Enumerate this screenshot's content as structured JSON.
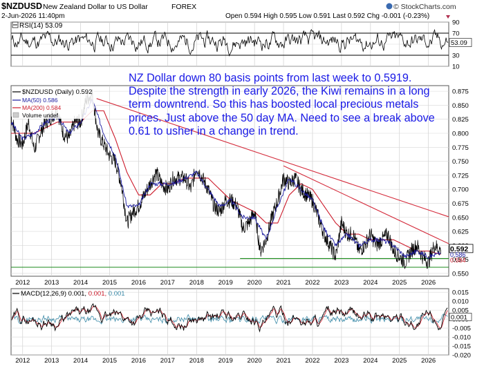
{
  "header": {
    "symbol": "$NZDUSD",
    "name": "New Zealand Dollar to US Dollar",
    "exchange": "FOREX",
    "brand": "© StockCharts.com",
    "date": "2-Jun-2026 11:40pm",
    "quote": "Open 0.594  High 0.595  Low 0.591  Last 0.592  Chg -0.001 (-0.23%)"
  },
  "annotation": "NZ Dollar down 80 basis points from last week to 0.5919. Despite the strength in early 2026, the Kiwi remains in a long term downtrend. So this has boosted local precious metals prices. Just above the 50 day MA. Need to see a break above 0.61 to usher in a change in trend.",
  "colors": {
    "price": "#000000",
    "ma50": "#1a1aa0",
    "ma200": "#cc1a2a",
    "trendline": "#d42a3a",
    "support": "#1a8a1a",
    "annotation": "#1a1ae6",
    "macd": "#000000",
    "signal": "#cc1a2a",
    "histogram": "#3a8aa8"
  },
  "chart_data": [
    {
      "type": "line",
      "panel": "RSI",
      "legend": "RSI(14) 53.09",
      "last_value": 53.09,
      "last_label": "53.09",
      "ylim": [
        10,
        90
      ],
      "reference_lines": [
        30,
        70
      ],
      "yticks": [
        "90",
        "70",
        "50",
        "30",
        "10"
      ],
      "xticks": [
        "2012",
        "2013",
        "2014",
        "2015",
        "2016",
        "2017",
        "2018",
        "2019",
        "2020",
        "2021",
        "2022",
        "2023",
        "2024",
        "2025",
        "2026"
      ]
    },
    {
      "type": "line",
      "panel": "Price",
      "title": "New Zealand Dollar to US Dollar",
      "legend": [
        "$NZDUSD (Daily) 0.592",
        "MA(50) 0.586",
        "MA(200) 0.584",
        "Volume undef"
      ],
      "ylim": [
        0.545,
        0.885
      ],
      "yticks": [
        "0.875",
        "0.850",
        "0.825",
        "0.800",
        "0.775",
        "0.750",
        "0.725",
        "0.700",
        "0.675",
        "0.650",
        "0.625",
        "0.600",
        "0.575",
        "0.550"
      ],
      "xticks": [
        "2012",
        "2013",
        "2014",
        "2015",
        "2016",
        "2017",
        "2018",
        "2019",
        "2020",
        "2021",
        "2022",
        "2023",
        "2024",
        "2025",
        "2026"
      ],
      "last_label": "0.592",
      "ma_labels": [
        "0.586",
        "0.584"
      ],
      "series": [
        {
          "name": "$NZDUSD",
          "x": [
            2011.6,
            2011.8,
            2012.0,
            2012.2,
            2012.4,
            2012.6,
            2012.8,
            2013.0,
            2013.2,
            2013.4,
            2013.6,
            2013.8,
            2014.0,
            2014.2,
            2014.4,
            2014.6,
            2014.8,
            2015.0,
            2015.2,
            2015.4,
            2015.6,
            2015.8,
            2016.0,
            2016.2,
            2016.4,
            2016.6,
            2016.8,
            2017.0,
            2017.2,
            2017.4,
            2017.6,
            2017.8,
            2018.0,
            2018.2,
            2018.4,
            2018.6,
            2018.8,
            2019.0,
            2019.2,
            2019.4,
            2019.6,
            2019.8,
            2020.0,
            2020.2,
            2020.4,
            2020.6,
            2020.8,
            2021.0,
            2021.2,
            2021.4,
            2021.6,
            2021.8,
            2022.0,
            2022.2,
            2022.4,
            2022.6,
            2022.8,
            2023.0,
            2023.2,
            2023.4,
            2023.6,
            2023.8,
            2024.0,
            2024.2,
            2024.4,
            2024.6,
            2024.8,
            2025.0,
            2025.2,
            2025.4,
            2025.6,
            2025.8,
            2026.0,
            2026.2,
            2026.42
          ],
          "values": [
            0.83,
            0.79,
            0.78,
            0.82,
            0.77,
            0.8,
            0.82,
            0.83,
            0.84,
            0.8,
            0.79,
            0.82,
            0.82,
            0.86,
            0.87,
            0.8,
            0.78,
            0.76,
            0.75,
            0.71,
            0.64,
            0.66,
            0.67,
            0.69,
            0.71,
            0.73,
            0.71,
            0.7,
            0.72,
            0.72,
            0.72,
            0.7,
            0.74,
            0.72,
            0.7,
            0.67,
            0.66,
            0.68,
            0.68,
            0.67,
            0.63,
            0.64,
            0.66,
            0.59,
            0.61,
            0.65,
            0.68,
            0.72,
            0.71,
            0.72,
            0.7,
            0.69,
            0.68,
            0.65,
            0.62,
            0.6,
            0.58,
            0.64,
            0.62,
            0.62,
            0.59,
            0.6,
            0.62,
            0.6,
            0.61,
            0.62,
            0.59,
            0.58,
            0.57,
            0.59,
            0.6,
            0.58,
            0.57,
            0.6,
            0.592
          ]
        },
        {
          "name": "MA(50)",
          "x": [
            2011.6,
            2012.0,
            2012.4,
            2012.8,
            2013.2,
            2013.6,
            2014.0,
            2014.4,
            2014.8,
            2015.2,
            2015.6,
            2016.0,
            2016.4,
            2016.8,
            2017.2,
            2017.6,
            2018.0,
            2018.4,
            2018.8,
            2019.2,
            2019.6,
            2020.0,
            2020.4,
            2020.8,
            2021.2,
            2021.6,
            2022.0,
            2022.4,
            2022.8,
            2023.2,
            2023.6,
            2024.0,
            2024.4,
            2024.8,
            2025.2,
            2025.6,
            2026.0,
            2026.42
          ],
          "values": [
            0.82,
            0.79,
            0.8,
            0.82,
            0.83,
            0.8,
            0.82,
            0.86,
            0.8,
            0.76,
            0.67,
            0.67,
            0.71,
            0.71,
            0.71,
            0.72,
            0.73,
            0.7,
            0.67,
            0.68,
            0.65,
            0.65,
            0.61,
            0.67,
            0.72,
            0.7,
            0.68,
            0.63,
            0.6,
            0.62,
            0.6,
            0.61,
            0.61,
            0.6,
            0.58,
            0.59,
            0.58,
            0.586
          ]
        },
        {
          "name": "MA(200)",
          "x": [
            2011.6,
            2012.0,
            2012.4,
            2012.8,
            2013.2,
            2013.6,
            2014.0,
            2014.4,
            2014.8,
            2015.2,
            2015.6,
            2016.0,
            2016.4,
            2016.8,
            2017.2,
            2017.6,
            2018.0,
            2018.4,
            2018.8,
            2019.2,
            2019.6,
            2020.0,
            2020.4,
            2020.8,
            2021.2,
            2021.6,
            2022.0,
            2022.4,
            2022.8,
            2023.2,
            2023.6,
            2024.0,
            2024.4,
            2024.8,
            2025.2,
            2025.6,
            2026.0,
            2026.42
          ],
          "values": [
            0.8,
            0.8,
            0.8,
            0.81,
            0.82,
            0.82,
            0.82,
            0.84,
            0.84,
            0.79,
            0.73,
            0.69,
            0.69,
            0.71,
            0.71,
            0.72,
            0.72,
            0.72,
            0.7,
            0.68,
            0.67,
            0.66,
            0.64,
            0.64,
            0.69,
            0.71,
            0.7,
            0.67,
            0.64,
            0.62,
            0.62,
            0.61,
            0.61,
            0.61,
            0.6,
            0.59,
            0.59,
            0.584
          ]
        }
      ],
      "trendlines": [
        {
          "x": [
            2014.55,
            2026.7
          ],
          "y": [
            0.862,
            0.651
          ]
        },
        {
          "x": [
            2021.0,
            2026.7
          ],
          "y": [
            0.742,
            0.603
          ]
        }
      ],
      "support_lines": [
        {
          "x": [
            2019.5,
            2026.7
          ],
          "y": 0.5765
        },
        {
          "x": [
            2011.6,
            2026.7
          ],
          "y": 0.561
        }
      ]
    },
    {
      "type": "line",
      "panel": "MACD",
      "legend": "MACD(12,26,9) 0.001, 0.001, 0.001",
      "legend_values": [
        "0.001,",
        "0.001,",
        "0.001"
      ],
      "ylim": [
        -0.02,
        0.017
      ],
      "yticks": [
        "0.015",
        "0.010",
        "0.005",
        "0.000",
        "-0.005",
        "-0.010",
        "-0.015",
        "-0.020"
      ],
      "last_label": "0.001",
      "xticks": [
        "2012",
        "2013",
        "2014",
        "2015",
        "2016",
        "2017",
        "2018",
        "2019",
        "2020",
        "2021",
        "2022",
        "2023",
        "2024",
        "2025",
        "2026"
      ]
    }
  ]
}
